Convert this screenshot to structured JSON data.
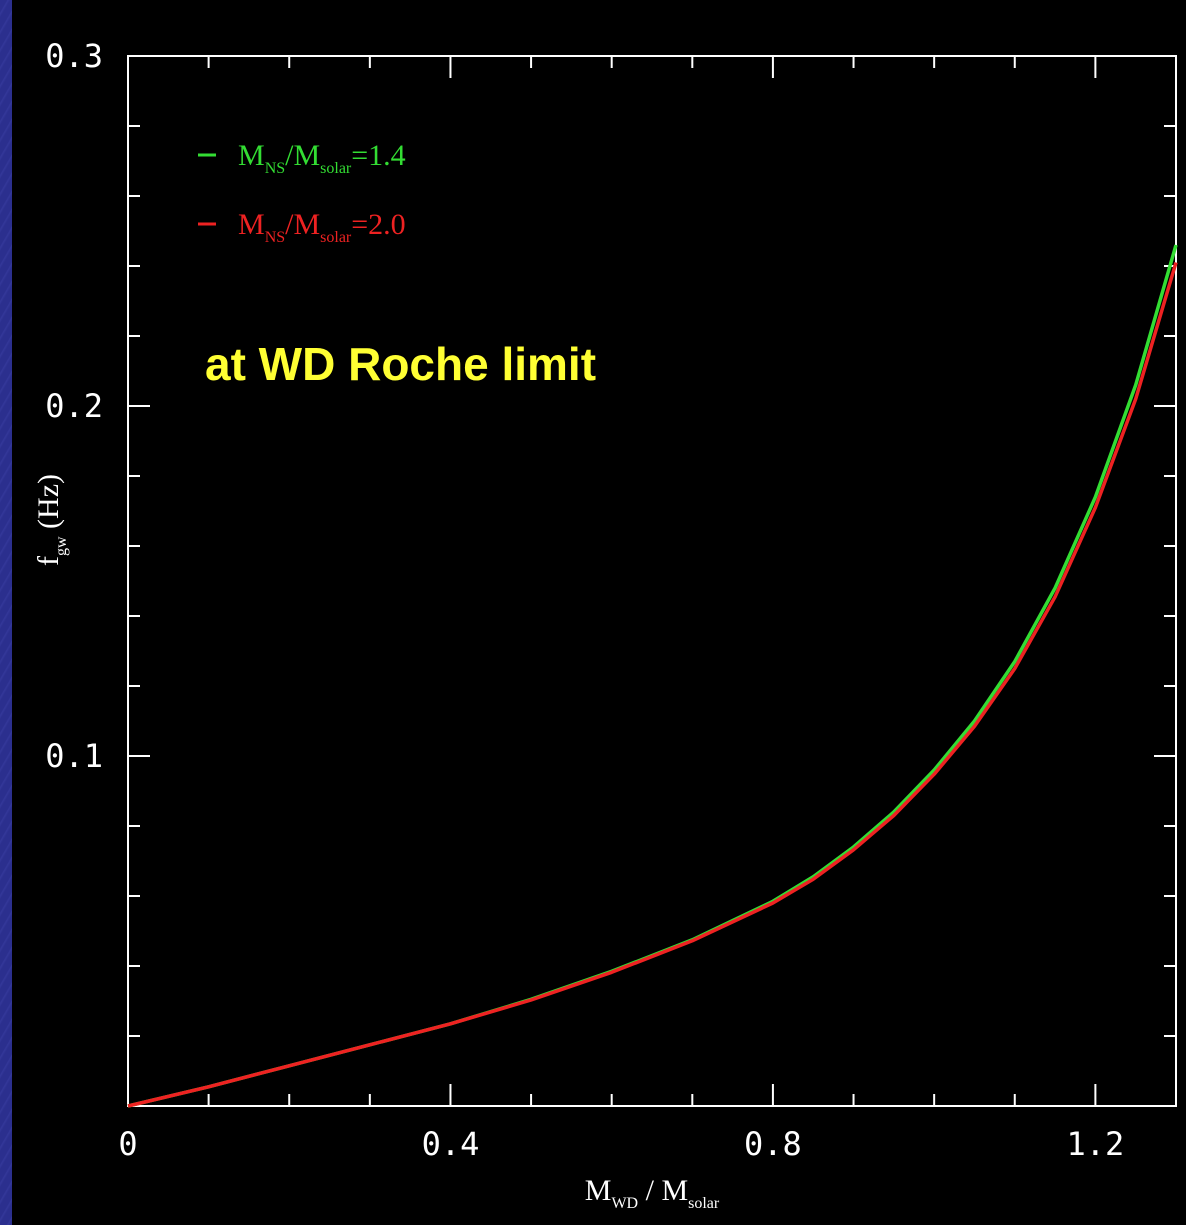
{
  "slide": {
    "annotation": "at WD Roche limit",
    "colors": {
      "background": "#2e3192",
      "panel": "#000000",
      "annotation": "#ffff33",
      "axes": "#ffffff"
    }
  },
  "chart_data": {
    "type": "line",
    "xlim": [
      0,
      1.3
    ],
    "ylim": [
      0,
      0.3
    ],
    "xticks": [
      "0",
      "0.4",
      "0.8",
      "1.2"
    ],
    "xtick_values": [
      0,
      0.4,
      0.8,
      1.2
    ],
    "yticks": [
      "0.1",
      "0.2",
      "0.3"
    ],
    "ytick_values": [
      0.1,
      0.2,
      0.3
    ],
    "xlabel": {
      "main": "M",
      "sub1": "WD",
      "sep": " / M",
      "sub2": "solar"
    },
    "ylabel": {
      "main": "f",
      "sub": "gw",
      "rest": " (Hz)"
    },
    "series": [
      {
        "name": "M_NS/M_solar=1.4",
        "legend": {
          "main": "M",
          "sub1": "NS",
          "sep": "/M",
          "sub2": "solar",
          "value": "=1.4"
        },
        "color": "#33dd33",
        "x": [
          0,
          0.1,
          0.2,
          0.3,
          0.4,
          0.5,
          0.6,
          0.7,
          0.8,
          0.85,
          0.9,
          0.95,
          1.0,
          1.05,
          1.1,
          1.15,
          1.2,
          1.25,
          1.3
        ],
        "y": [
          0,
          0.0055,
          0.0115,
          0.0175,
          0.0235,
          0.0305,
          0.0385,
          0.0475,
          0.0585,
          0.0655,
          0.074,
          0.084,
          0.096,
          0.11,
          0.127,
          0.148,
          0.174,
          0.206,
          0.246
        ]
      },
      {
        "name": "M_NS/M_solar=2.0",
        "legend": {
          "main": "M",
          "sub1": "NS",
          "sep": "/M",
          "sub2": "solar",
          "value": "=2.0"
        },
        "color": "#ee2222",
        "x": [
          0,
          0.1,
          0.2,
          0.3,
          0.4,
          0.5,
          0.6,
          0.7,
          0.8,
          0.85,
          0.9,
          0.95,
          1.0,
          1.05,
          1.1,
          1.15,
          1.2,
          1.25,
          1.3
        ],
        "y": [
          0,
          0.0055,
          0.0115,
          0.0175,
          0.0235,
          0.0303,
          0.0382,
          0.0472,
          0.058,
          0.0648,
          0.0732,
          0.083,
          0.0948,
          0.1085,
          0.125,
          0.1455,
          0.171,
          0.202,
          0.241
        ]
      }
    ]
  }
}
